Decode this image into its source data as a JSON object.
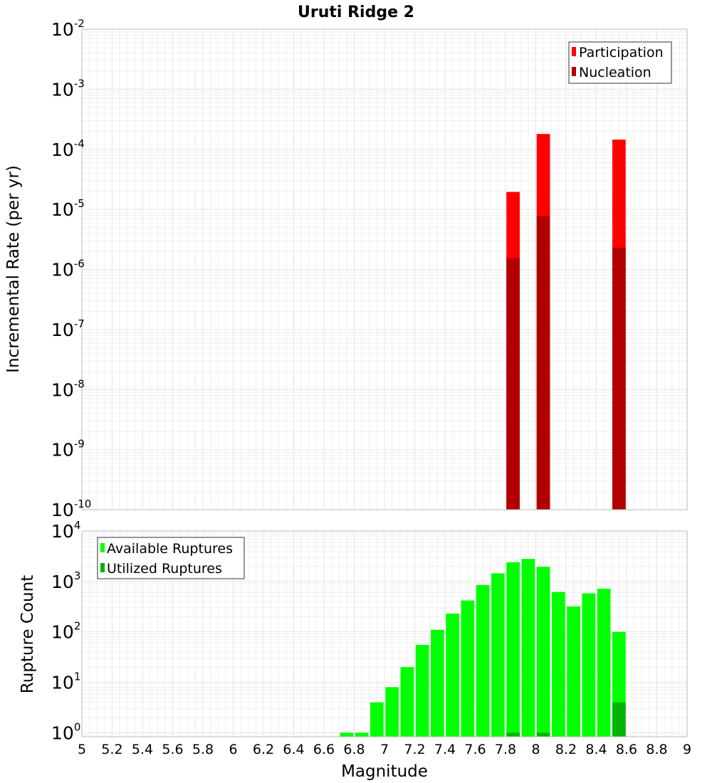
{
  "chart_data": {
    "title": "Uruti Ridge 2",
    "x_axis": {
      "label": "Magnitude",
      "range": [
        5,
        9
      ],
      "ticks": [
        "5",
        "5.2",
        "5.4",
        "5.6",
        "5.8",
        "6",
        "6.2",
        "6.4",
        "6.6",
        "6.8",
        "7",
        "7.2",
        "7.4",
        "7.6",
        "7.8",
        "8",
        "8.2",
        "8.4",
        "8.6",
        "8.8",
        "9"
      ]
    },
    "bin_width": 0.1,
    "panels": [
      {
        "type": "bar",
        "scale": "log",
        "ylabel": "Incremental Rate (per yr)",
        "ylim_exponents": [
          -10,
          -2
        ],
        "y_tick_labels": [
          {
            "base": "10",
            "exp": "-10"
          },
          {
            "base": "10",
            "exp": "-9"
          },
          {
            "base": "10",
            "exp": "-8"
          },
          {
            "base": "10",
            "exp": "-7"
          },
          {
            "base": "10",
            "exp": "-6"
          },
          {
            "base": "10",
            "exp": "-5"
          },
          {
            "base": "10",
            "exp": "-4"
          },
          {
            "base": "10",
            "exp": "-3"
          },
          {
            "base": "10",
            "exp": "-2"
          }
        ],
        "legend": {
          "position": "top-right"
        },
        "series": [
          {
            "name": "Participation",
            "color": "#ff0000",
            "x": [
              7.85,
              8.05,
              8.55
            ],
            "values": [
              1.95e-05,
              0.00018,
              0.000145
            ]
          },
          {
            "name": "Nucleation",
            "color": "#b20000",
            "x": [
              7.85,
              8.05,
              8.55
            ],
            "values": [
              1.55e-06,
              7.8e-06,
              2.3e-06
            ]
          }
        ]
      },
      {
        "type": "bar",
        "scale": "log",
        "ylabel": "Rupture Count",
        "ylim_exponents": [
          -0.08,
          4
        ],
        "y_tick_labels": [
          {
            "base": "10",
            "exp": "0"
          },
          {
            "base": "10",
            "exp": "1"
          },
          {
            "base": "10",
            "exp": "2"
          },
          {
            "base": "10",
            "exp": "3"
          },
          {
            "base": "10",
            "exp": "4"
          }
        ],
        "legend": {
          "position": "top-left"
        },
        "series": [
          {
            "name": "Available Ruptures",
            "color": "#00ff00",
            "x": [
              6.75,
              6.85,
              6.95,
              7.05,
              7.15,
              7.25,
              7.35,
              7.45,
              7.55,
              7.65,
              7.75,
              7.85,
              7.95,
              8.05,
              8.15,
              8.25,
              8.35,
              8.45,
              8.55
            ],
            "values": [
              1,
              1,
              4,
              8,
              20,
              55,
              110,
              230,
              420,
              850,
              1450,
              2400,
              2800,
              1950,
              620,
              320,
              580,
              720,
              100
            ]
          },
          {
            "name": "Utilized Ruptures",
            "color": "#00b400",
            "x": [
              7.85,
              8.05,
              8.55
            ],
            "values": [
              1,
              1,
              4
            ]
          }
        ]
      }
    ]
  }
}
